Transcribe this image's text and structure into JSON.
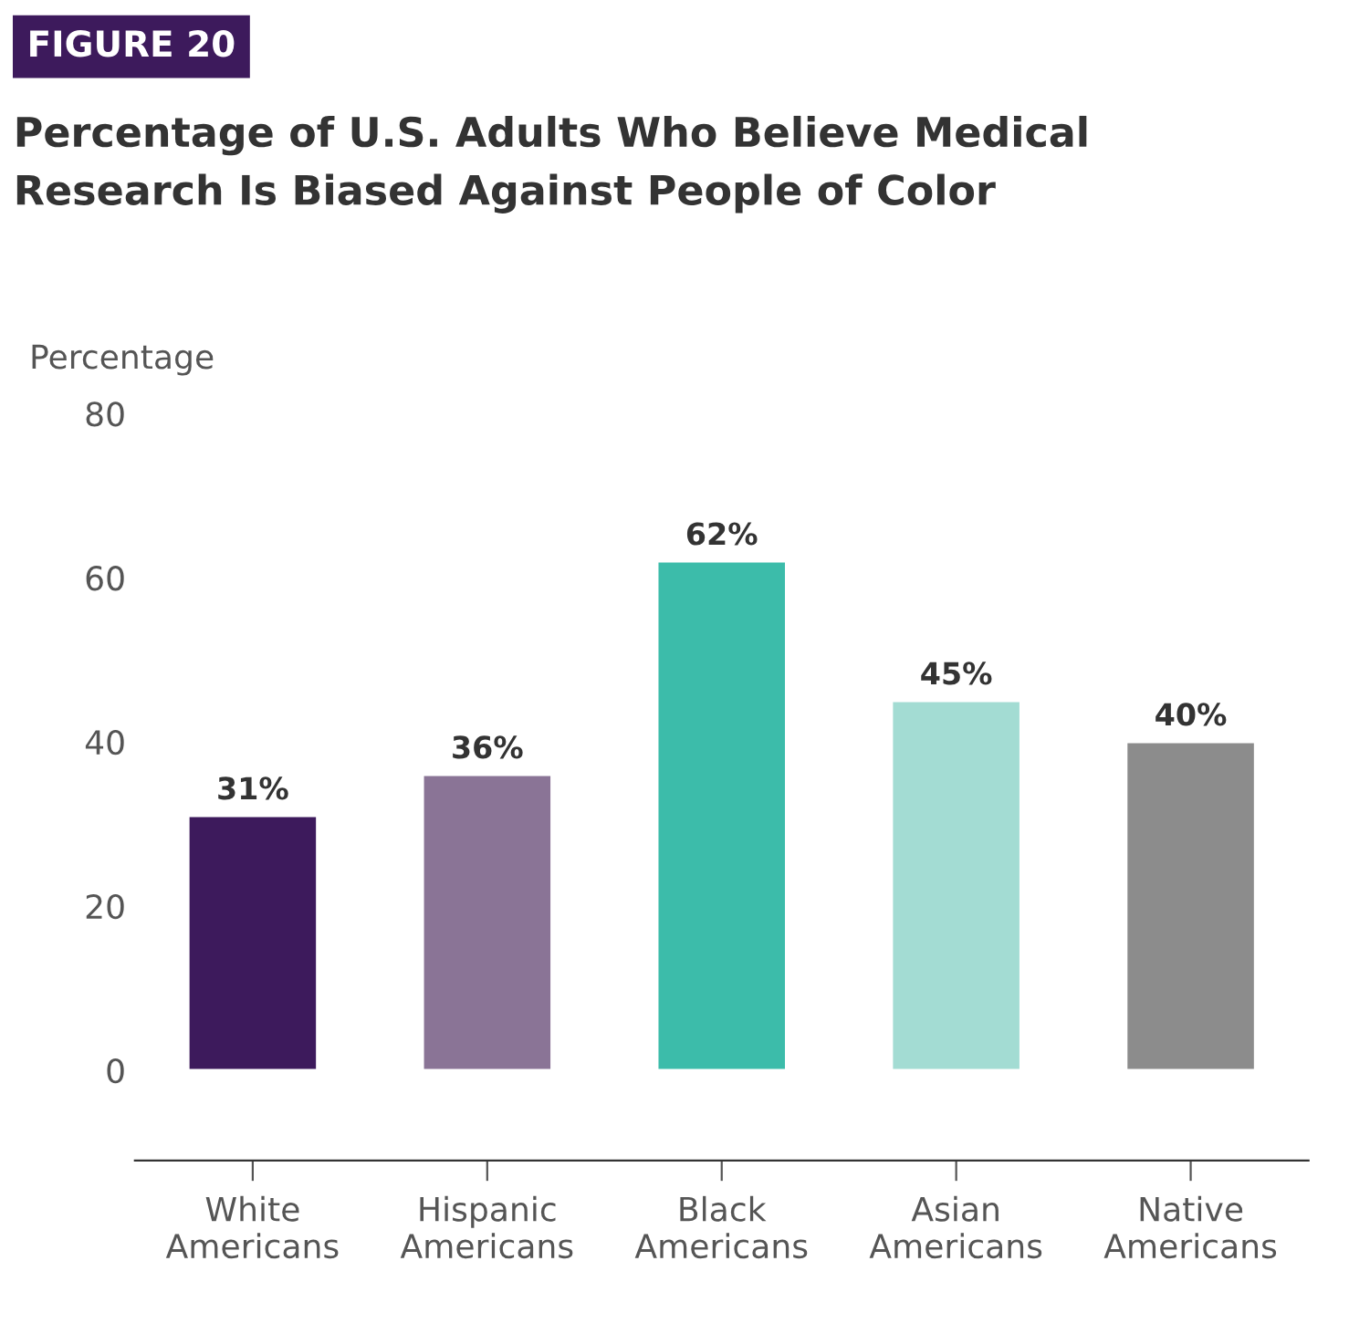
{
  "chart_data": {
    "type": "bar",
    "title": "Percentage of U.S. Adults Who Believe Medical\nResearch Is Biased Against People of Color",
    "annotations": [
      "FIGURE 20"
    ],
    "ylabel": "Percentage",
    "categories": [
      "White\nAmericans",
      "Hispanic\nAmericans",
      "Black\nAmericans",
      "Asian\nAmericans",
      "Native\nAmericans"
    ],
    "values": [
      31,
      36,
      62,
      45,
      40
    ],
    "value_labels": [
      "31%",
      "36%",
      "62%",
      "45%",
      "40%"
    ],
    "colors": [
      "#3d1a5c",
      "#8a7496",
      "#3cbcaa",
      "#a3dcd3",
      "#8c8c8c"
    ],
    "ylim": [
      -11,
      80
    ],
    "yticks": [
      0,
      20,
      40,
      60,
      80
    ],
    "grid": false,
    "legend": false
  }
}
